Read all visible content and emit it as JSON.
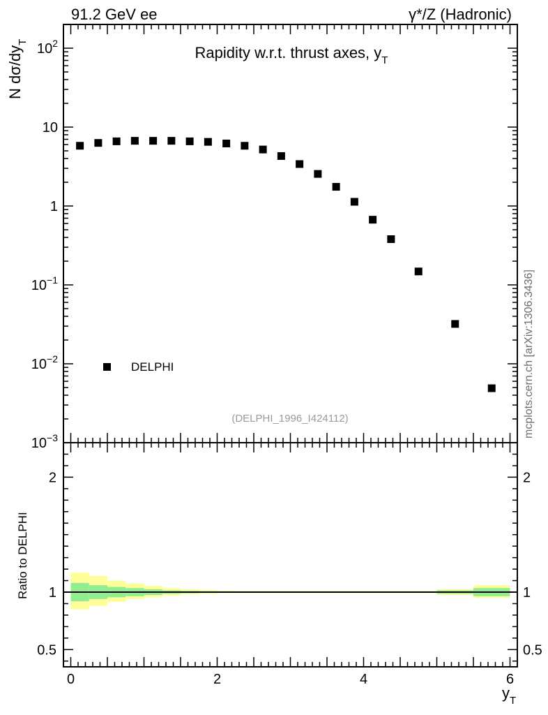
{
  "header": {
    "left_label": "91.2 GeV ee",
    "right_label": "γ*/Z (Hadronic)"
  },
  "side_label": "mcplots.cern.ch [arXiv:1306.3436]",
  "reference": "(DELPHI_1996_I424112)",
  "chart_data": [
    {
      "type": "scatter",
      "title": "Rapidity w.r.t. thrust axes, y_T",
      "ylabel": "N  dσ/dy_T",
      "yscale": "log",
      "ylim": [
        0.001,
        200
      ],
      "xlim": [
        -0.1,
        6.1
      ],
      "yticks": [
        {
          "value": 0.001,
          "base": "10",
          "exp": "−3"
        },
        {
          "value": 0.01,
          "base": "10",
          "exp": "−2"
        },
        {
          "value": 0.1,
          "base": "10",
          "exp": "−1"
        },
        {
          "value": 1,
          "base": "1",
          "exp": ""
        },
        {
          "value": 10,
          "base": "10",
          "exp": ""
        },
        {
          "value": 100,
          "base": "10",
          "exp": "2"
        }
      ],
      "legend": [
        "DELPHI"
      ],
      "legend_position": "lower-left",
      "series": [
        {
          "name": "DELPHI",
          "marker": "square",
          "color": "#000000",
          "x": [
            0.125,
            0.375,
            0.625,
            0.875,
            1.125,
            1.375,
            1.625,
            1.875,
            2.125,
            2.375,
            2.625,
            2.875,
            3.125,
            3.375,
            3.625,
            3.875,
            4.125,
            4.375,
            4.75,
            5.25,
            5.75
          ],
          "y": [
            5.8,
            6.3,
            6.6,
            6.7,
            6.7,
            6.7,
            6.6,
            6.5,
            6.2,
            5.8,
            5.2,
            4.3,
            3.4,
            2.55,
            1.75,
            1.13,
            0.67,
            0.38,
            0.148,
            0.032,
            0.0049
          ]
        }
      ]
    },
    {
      "type": "area",
      "ylabel": "Ratio to DELPHI",
      "xlabel": "y_T",
      "ylim": [
        0.35,
        2.3
      ],
      "xlim": [
        -0.1,
        6.1
      ],
      "xticks": [
        0,
        2,
        4,
        6
      ],
      "yticks": [
        0.5,
        1,
        2
      ],
      "reference_line": 1,
      "bin_edges": [
        0,
        0.25,
        0.5,
        0.75,
        1.0,
        1.25,
        1.5,
        1.75,
        2.0,
        2.25,
        2.5,
        2.75,
        3.0,
        3.25,
        3.5,
        3.75,
        4.0,
        4.25,
        4.5,
        5.0,
        5.5,
        6.0
      ],
      "stat_band": {
        "color": "#90ee90",
        "lower": [
          0.92,
          0.94,
          0.955,
          0.965,
          0.975,
          0.985,
          0.99,
          0.993,
          0.995,
          0.995,
          0.995,
          0.995,
          0.995,
          0.995,
          0.995,
          0.995,
          0.995,
          0.995,
          0.995,
          0.985,
          0.965
        ],
        "upper": [
          1.08,
          1.06,
          1.045,
          1.035,
          1.025,
          1.015,
          1.01,
          1.007,
          1.005,
          1.005,
          1.005,
          1.005,
          1.005,
          1.005,
          1.005,
          1.005,
          1.005,
          1.005,
          1.005,
          1.015,
          1.035
        ]
      },
      "total_band": {
        "color": "#ffff99",
        "lower": [
          0.85,
          0.88,
          0.915,
          0.94,
          0.955,
          0.97,
          0.98,
          0.985,
          0.99,
          0.99,
          0.99,
          0.99,
          0.99,
          0.99,
          0.99,
          0.99,
          0.99,
          0.99,
          0.99,
          0.975,
          0.95
        ],
        "upper": [
          1.17,
          1.14,
          1.1,
          1.075,
          1.055,
          1.035,
          1.025,
          1.018,
          1.012,
          1.01,
          1.01,
          1.01,
          1.01,
          1.01,
          1.01,
          1.01,
          1.01,
          1.01,
          1.01,
          1.025,
          1.06
        ]
      }
    }
  ]
}
